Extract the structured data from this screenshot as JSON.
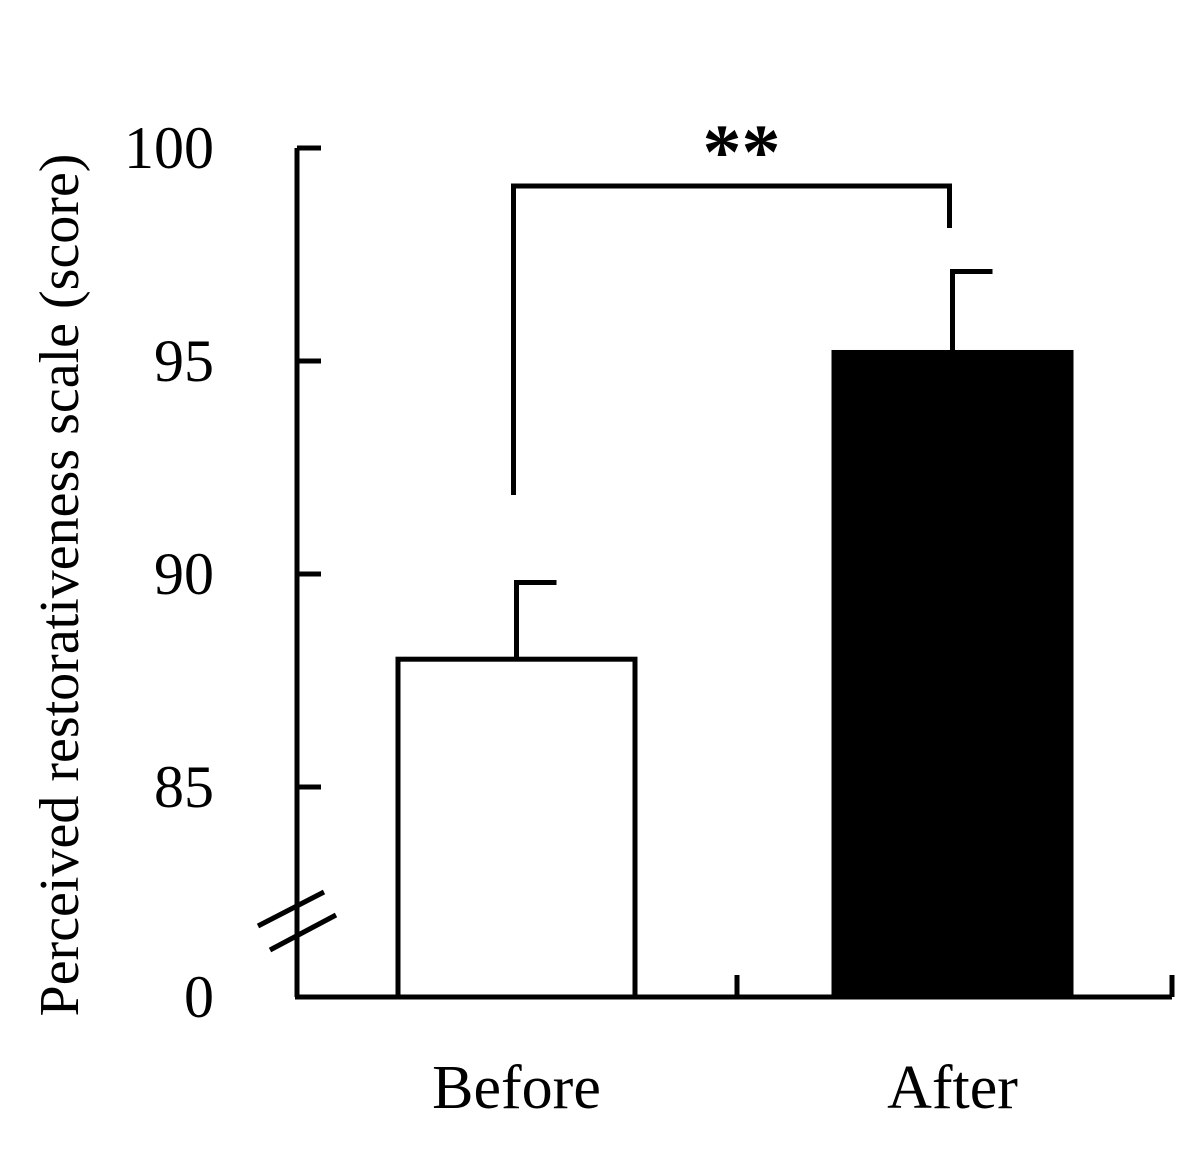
{
  "chart_data": {
    "type": "bar",
    "categories": [
      "Before",
      "After"
    ],
    "values": [
      88.0,
      95.2
    ],
    "errors": [
      1.8,
      1.9
    ],
    "bar_colors": [
      "#ffffff",
      "#000000"
    ],
    "ylabel": "Perceived restorativeness scale (score)",
    "xlabel": "",
    "ylim": [
      82,
      100
    ],
    "axis_break": true,
    "yticks": [
      85,
      90,
      95,
      100
    ],
    "ytick_labels": [
      "85",
      "90",
      "95",
      "100"
    ],
    "baseline_label": "0",
    "significance": {
      "label": "**",
      "between": [
        "Before",
        "After"
      ]
    },
    "grid": false,
    "legend": "none"
  }
}
